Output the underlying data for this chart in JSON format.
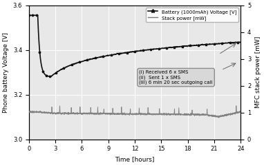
{
  "title": "",
  "xlabel": "Time [hours]",
  "ylabel_left": "Phone battery Voltage [V]",
  "ylabel_right": "MFC stack power [mW]",
  "xlim": [
    0,
    24
  ],
  "ylim_left": [
    3.0,
    3.6
  ],
  "ylim_right": [
    0,
    5
  ],
  "xticks": [
    0,
    3,
    6,
    9,
    12,
    15,
    18,
    21,
    24
  ],
  "yticks_left": [
    3.0,
    3.2,
    3.4,
    3.6
  ],
  "yticks_right": [
    0,
    1,
    2,
    3,
    4,
    5
  ],
  "legend_battery": "Battery (1000mAh) Voltage [V]",
  "legend_stack": "Stack power [mW]",
  "annotation_text": "(i) Received 6 x SMS\n(ii)  Sent 1 x SMS\n(iii) 6 min 20 sec outgoing call",
  "bg_color": "#e8e8e8",
  "battery_color": "#111111",
  "stack_color": "#777777",
  "grid_color": "#ffffff"
}
